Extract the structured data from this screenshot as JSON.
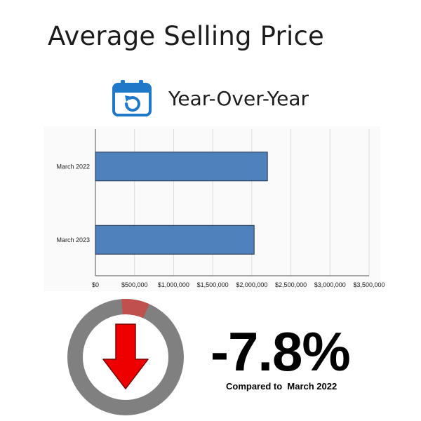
{
  "header": {
    "title": "Average Selling Price",
    "subtitle": "Year-Over-Year",
    "icon": "calendar-refresh-icon",
    "icon_color": "#1f78c8"
  },
  "chart_data": {
    "type": "bar",
    "orientation": "horizontal",
    "categories": [
      "March 2022",
      "March 2023"
    ],
    "values": [
      2200000,
      2030000
    ],
    "xlim": [
      0,
      3500000
    ],
    "xticks": [
      0,
      500000,
      1000000,
      1500000,
      2000000,
      2500000,
      3000000,
      3500000
    ],
    "xtick_labels": [
      "$0",
      "$500,000",
      "$1,000,000",
      "$1,500,000",
      "$2,000,000",
      "$2,500,000",
      "$3,000,000",
      "$3,500,000"
    ],
    "grid": "vertical",
    "bar_color": "#4f81bd"
  },
  "summary": {
    "change": "-7.8%",
    "note": "Compared to  March 2022",
    "ring_fraction": 0.078,
    "ring_color": "#808080",
    "ring_highlight_color": "#c0504d",
    "arrow_icon": "arrow-down-icon",
    "arrow_color": "#ee0000"
  }
}
